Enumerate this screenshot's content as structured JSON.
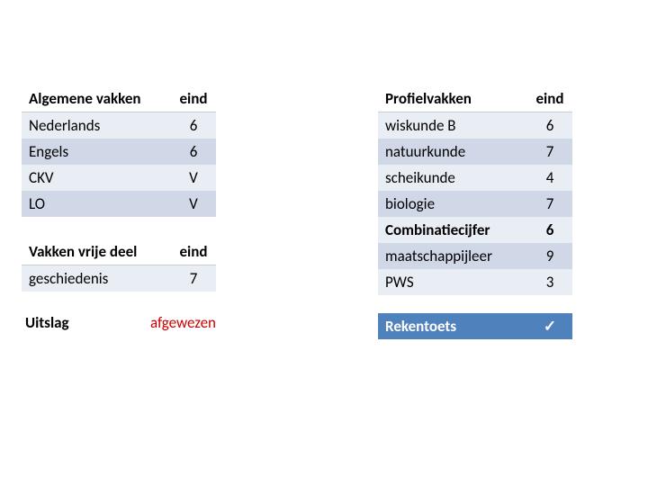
{
  "colors": {
    "stripe_light": "#e9edf4",
    "stripe_dark": "#d0d8e8",
    "blue_header": "#4f81bd",
    "red_text": "#cc0000",
    "black": "#000000",
    "white": "#ffffff"
  },
  "left": {
    "table1": {
      "head_subject": "Algemene vakken",
      "head_grade": "eind",
      "rows": [
        {
          "subject": "Nederlands",
          "grade": "6"
        },
        {
          "subject": "Engels",
          "grade": "6"
        },
        {
          "subject": "CKV",
          "grade": "V"
        },
        {
          "subject": "LO",
          "grade": "V"
        }
      ]
    },
    "table2": {
      "head_subject": "Vakken vrije deel",
      "head_grade": "eind",
      "rows": [
        {
          "subject": "geschiedenis",
          "grade": "7"
        }
      ]
    },
    "uitslag": {
      "label": "Uitslag",
      "value": "afgewezen"
    }
  },
  "right": {
    "table3": {
      "head_subject": "Profielvakken",
      "head_grade": "eind",
      "rows": [
        {
          "subject": "wiskunde B",
          "grade": "6"
        },
        {
          "subject": "natuurkunde",
          "grade": "7"
        },
        {
          "subject": "scheikunde",
          "grade": "4"
        },
        {
          "subject": "biologie",
          "grade": "7"
        },
        {
          "subject": "Combinatiecijfer",
          "grade": "6",
          "bold": true
        },
        {
          "subject": "maatschappijleer",
          "grade": "9"
        },
        {
          "subject": "PWS",
          "grade": "3"
        }
      ]
    },
    "table4": {
      "head_subject": "Rekentoets",
      "head_grade": "✓"
    }
  }
}
